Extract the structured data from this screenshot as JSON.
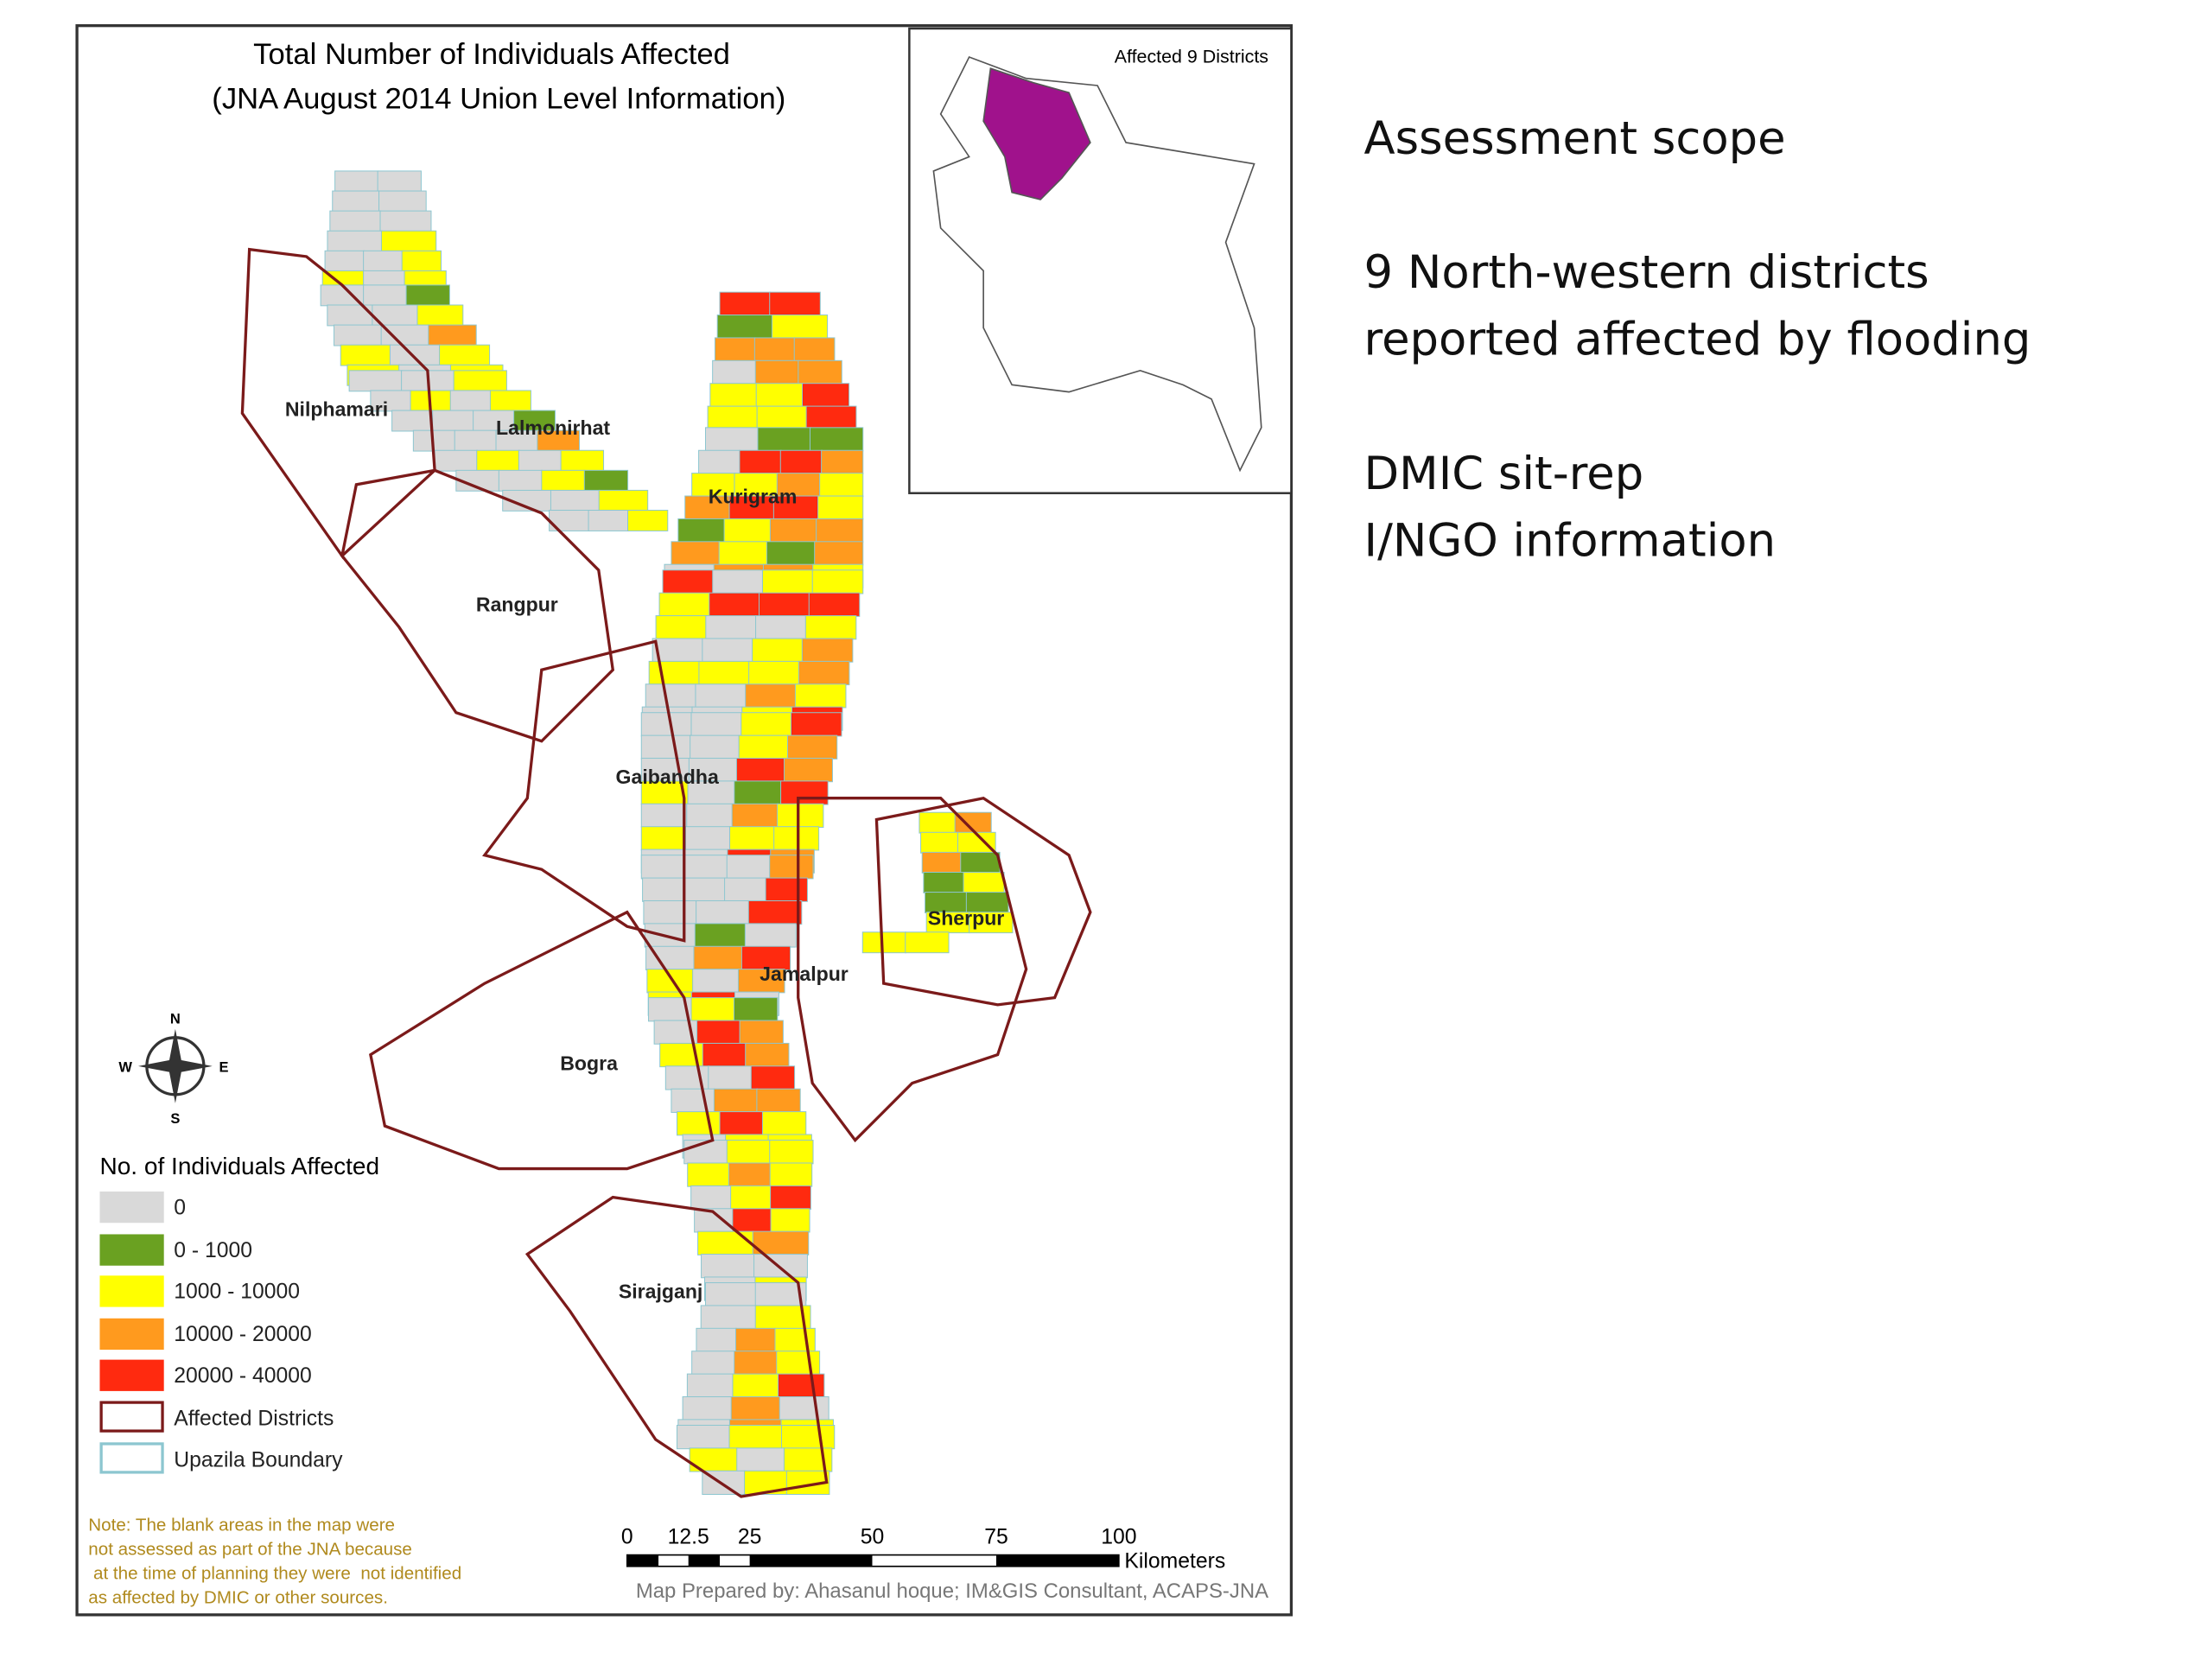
{
  "map": {
    "title": [
      "Total Number of Individuals Affected",
      "(JNA August 2014 Union Level Information)"
    ],
    "inset_title": "Affected 9 Districts",
    "district_labels": [
      "Nilphamari",
      "Lalmonirhat",
      "Kurigram",
      "Rangpur",
      "Gaibandha",
      "Sherpur",
      "Jamalpur",
      "Bogra",
      "Sirajganj"
    ],
    "compass": {
      "n": "N",
      "w": "W",
      "e": "E",
      "s": "S"
    },
    "legend": {
      "title": "No. of Individuals Affected",
      "items": [
        "0",
        "0 - 1000",
        "1000 - 10000",
        "10000 - 20000",
        "20000 - 40000",
        "Affected Districts",
        "Upazila Boundary"
      ]
    },
    "note": [
      "Note: The blank areas in the map were",
      "not assessed as part of the JNA because",
      " at the time of planning they were  not identified",
      "as affected by DMIC or other sources."
    ],
    "scale_bar": {
      "labels": [
        "0",
        "12.5",
        "25",
        "50",
        "75",
        "100"
      ],
      "unit": "Kilometers"
    },
    "credit": "Map Prepared by: Ahasanul hoque; IM&GIS Consultant, ACAPS-JNA"
  },
  "side_text": {
    "heading": "Assessment scope",
    "paragraphs": [
      [
        "9 North-western districts",
        "reported affected by flooding"
      ],
      [
        "DMIC sit-rep",
        "I/NGO information"
      ]
    ]
  }
}
